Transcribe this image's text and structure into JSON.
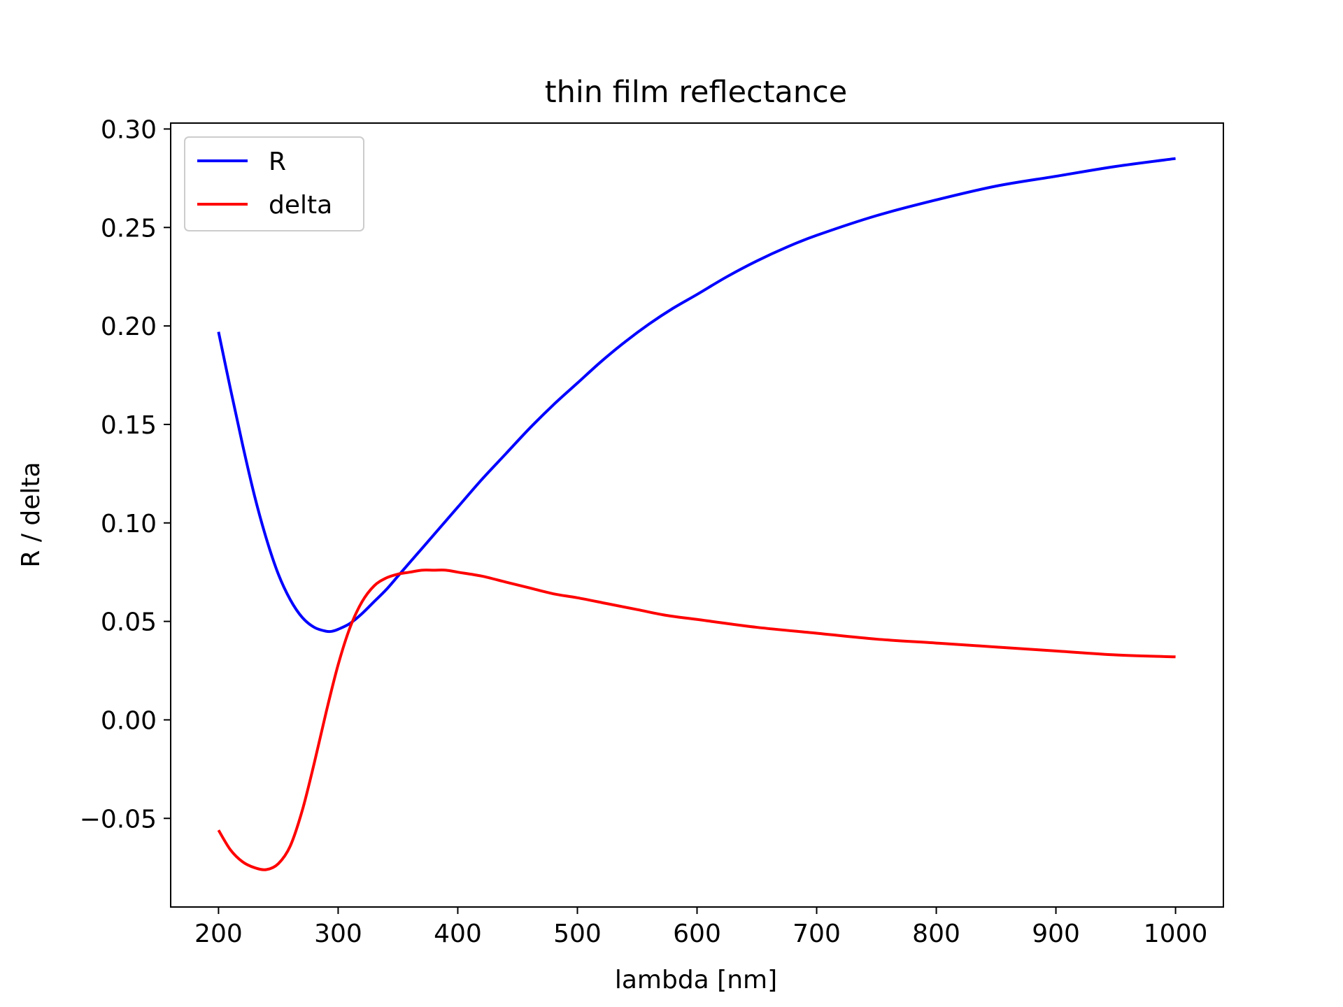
{
  "chart_data": {
    "type": "line",
    "title": "thin film reflectance",
    "xlabel": "lambda [nm]",
    "ylabel": "R / delta",
    "xlim": [
      160,
      1040
    ],
    "ylim": [
      -0.095,
      0.303
    ],
    "xticks": [
      200,
      300,
      400,
      500,
      600,
      700,
      800,
      900,
      1000
    ],
    "xtick_labels": [
      "200",
      "300",
      "400",
      "500",
      "600",
      "700",
      "800",
      "900",
      "1000"
    ],
    "yticks": [
      -0.05,
      0.0,
      0.05,
      0.1,
      0.15,
      0.2,
      0.25,
      0.3
    ],
    "ytick_labels": [
      "−0.05",
      "0.00",
      "0.05",
      "0.10",
      "0.15",
      "0.20",
      "0.25",
      "0.30"
    ],
    "grid": false,
    "legend_position": "top-left",
    "series": [
      {
        "name": "R",
        "color": "#0000ff",
        "x": [
          200,
          210,
          220,
          230,
          240,
          250,
          260,
          270,
          280,
          290,
          295,
          300,
          310,
          320,
          330,
          340,
          350,
          360,
          370,
          380,
          390,
          400,
          420,
          440,
          460,
          480,
          500,
          520,
          540,
          560,
          580,
          600,
          625,
          650,
          675,
          700,
          750,
          800,
          850,
          900,
          950,
          1000
        ],
        "values": [
          0.197,
          0.168,
          0.14,
          0.114,
          0.092,
          0.074,
          0.061,
          0.052,
          0.047,
          0.045,
          0.045,
          0.046,
          0.049,
          0.054,
          0.06,
          0.066,
          0.073,
          0.08,
          0.087,
          0.094,
          0.101,
          0.108,
          0.122,
          0.135,
          0.148,
          0.16,
          0.171,
          0.182,
          0.192,
          0.201,
          0.209,
          0.216,
          0.225,
          0.233,
          0.24,
          0.246,
          0.256,
          0.264,
          0.271,
          0.276,
          0.281,
          0.285
        ]
      },
      {
        "name": "delta",
        "color": "#ff0000",
        "x": [
          200,
          210,
          220,
          230,
          240,
          250,
          260,
          270,
          280,
          290,
          300,
          310,
          320,
          330,
          340,
          350,
          360,
          370,
          380,
          390,
          400,
          420,
          440,
          460,
          480,
          500,
          525,
          550,
          575,
          600,
          650,
          700,
          750,
          800,
          850,
          900,
          950,
          1000
        ],
        "values": [
          -0.056,
          -0.066,
          -0.072,
          -0.075,
          -0.076,
          -0.073,
          -0.064,
          -0.046,
          -0.022,
          0.004,
          0.028,
          0.047,
          0.06,
          0.068,
          0.072,
          0.074,
          0.075,
          0.076,
          0.076,
          0.076,
          0.075,
          0.073,
          0.07,
          0.067,
          0.064,
          0.062,
          0.059,
          0.056,
          0.053,
          0.051,
          0.047,
          0.044,
          0.041,
          0.039,
          0.037,
          0.035,
          0.033,
          0.032
        ]
      }
    ]
  }
}
